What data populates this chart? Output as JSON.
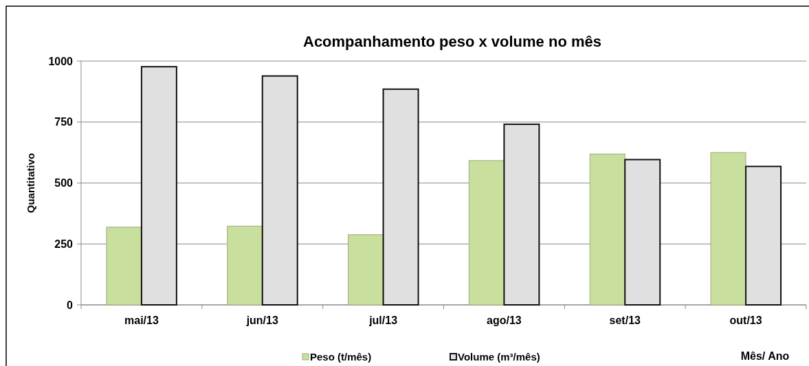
{
  "chart_data": {
    "type": "bar",
    "title": "Acompanhamento peso x volume no mês",
    "xlabel": "Mês/ Ano",
    "ylabel": "Quantitativo",
    "categories": [
      "mai/13",
      "jun/13",
      "jul/13",
      "ago/13",
      "set/13",
      "out/13"
    ],
    "series": [
      {
        "name": "Peso (t/mês)",
        "color": "#c9df9e",
        "values": [
          319,
          323,
          288,
          592,
          619,
          625
        ]
      },
      {
        "name": "Volume (m³/mês)",
        "color": "#e0e0e0",
        "values": [
          977,
          939,
          885,
          741,
          596,
          568
        ]
      }
    ],
    "ylim": [
      0,
      1000
    ],
    "yticks": [
      0,
      250,
      500,
      750,
      1000
    ],
    "grid": "y",
    "legend": "bottom"
  }
}
